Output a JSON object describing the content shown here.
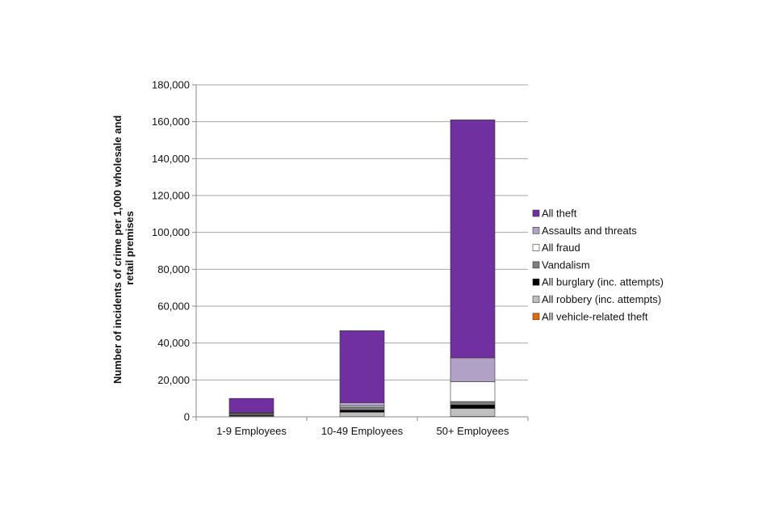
{
  "chart_data": {
    "type": "bar",
    "stacked": true,
    "title": "",
    "xlabel": "",
    "ylabel_lines": [
      "Number of incidents of crime per 1,000 wholesale and",
      "retail premises"
    ],
    "ylim": [
      0,
      180000
    ],
    "yticks": [
      "0",
      "20,000",
      "40,000",
      "60,000",
      "80,000",
      "100,000",
      "120,000",
      "140,000",
      "160,000",
      "180,000"
    ],
    "grid": true,
    "legend_position": "right",
    "categories": [
      "1-9 Employees",
      "10-49 Employees",
      "50+ Employees"
    ],
    "series": [
      {
        "name": "All vehicle-related theft",
        "color": "#e36c0a",
        "values": [
          100,
          200,
          300
        ]
      },
      {
        "name": "All robbery (inc. attempts)",
        "color": "#bfbfbf",
        "values": [
          300,
          2300,
          4200
        ]
      },
      {
        "name": "All burglary (inc. attempts)",
        "color": "#000000",
        "values": [
          500,
          1200,
          2000
        ]
      },
      {
        "name": "Vandalism",
        "color": "#7f7f7f",
        "values": [
          800,
          1500,
          1800
        ]
      },
      {
        "name": "All fraud",
        "color": "#ffffff",
        "values": [
          300,
          600,
          10700
        ]
      },
      {
        "name": "Assaults and threats",
        "color": "#b2a1c7",
        "values": [
          300,
          1900,
          13000
        ]
      },
      {
        "name": "All theft",
        "color": "#7030a0",
        "values": [
          7700,
          39000,
          129000
        ]
      }
    ]
  }
}
